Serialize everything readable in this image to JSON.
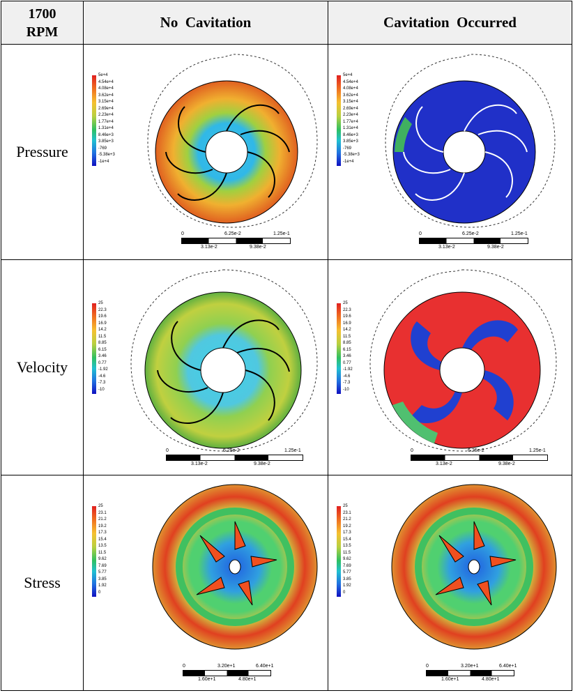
{
  "header": {
    "corner_line1": "1700",
    "corner_line2": "RPM",
    "col_no_cavitation": "No  Cavitation",
    "col_cavitation": "Cavitation  Occurred"
  },
  "rows": {
    "pressure": "Pressure",
    "velocity": "Velocity",
    "stress": "Stress"
  },
  "legends": {
    "pressure": [
      "5e+4",
      "4.54e+4",
      "4.08e+4",
      "3.62e+4",
      "3.15e+4",
      "2.69e+4",
      "2.23e+4",
      "1.77e+4",
      "1.31e+4",
      "8.46e+3",
      "3.85e+3",
      "-769",
      "-5.38e+3",
      "-1e+4"
    ],
    "velocity": [
      "25",
      "22.3",
      "19.6",
      "16.9",
      "14.2",
      "11.5",
      "8.85",
      "6.15",
      "3.46",
      "0.77",
      "-1.92",
      "-4.6",
      "-7.3",
      "-10"
    ],
    "stress": [
      "25",
      "23.1",
      "21.2",
      "19.2",
      "17.3",
      "15.4",
      "13.5",
      "11.5",
      "9.62",
      "7.69",
      "5.77",
      "3.85",
      "1.92",
      "0"
    ]
  },
  "scalebars": {
    "flow": {
      "top_left": "0",
      "top_mid": "6.25e-2",
      "top_right": "1.25e-1",
      "bottom_left": "3.13e-2",
      "bottom_right": "9.38e-2"
    },
    "stress": {
      "top_left": "0",
      "top_mid": "3.20e+1",
      "top_right": "6.40e+1",
      "bottom_left": "1.60e+1",
      "bottom_right": "4.80e+1"
    }
  },
  "colors": {
    "header_bg": "#f0f0f0",
    "border": "#000000"
  }
}
